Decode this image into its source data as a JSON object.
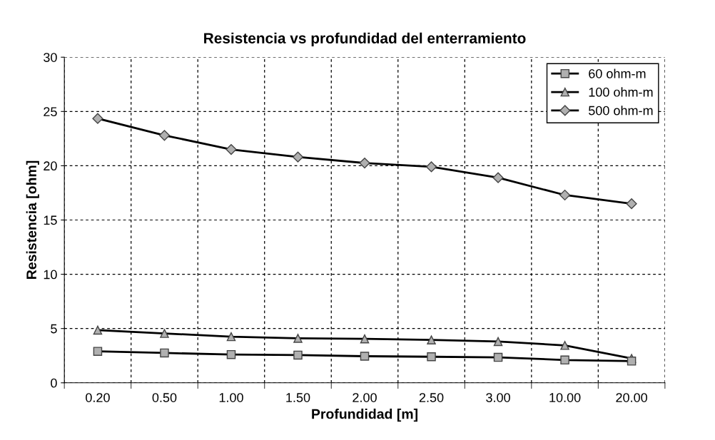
{
  "chart_data": {
    "type": "line",
    "title": "Resistencia vs profundidad del enterramiento",
    "xlabel": "Profundidad [m]",
    "ylabel": "Resistencia [ohm]",
    "categories": [
      "0.20",
      "0.50",
      "1.00",
      "1.50",
      "2.00",
      "2.50",
      "3.00",
      "10.00",
      "20.00"
    ],
    "ylim": [
      0,
      30
    ],
    "yticks": [
      0,
      5,
      10,
      15,
      20,
      25,
      30
    ],
    "grid": true,
    "legend": "top right",
    "line_style": "solid",
    "series": [
      {
        "name": "60 ohm-m",
        "color": "#000000",
        "marker": "square",
        "values": [
          2.9,
          2.75,
          2.6,
          2.55,
          2.45,
          2.4,
          2.35,
          2.1,
          2.0
        ]
      },
      {
        "name": "100 ohm-m",
        "color": "#000000",
        "marker": "triangle",
        "values": [
          4.85,
          4.55,
          4.25,
          4.1,
          4.05,
          3.95,
          3.8,
          3.45,
          2.25
        ]
      },
      {
        "name": "500 ohm-m",
        "color": "#000000",
        "marker": "diamond",
        "values": [
          24.35,
          22.8,
          21.5,
          20.8,
          20.25,
          19.9,
          18.9,
          17.3,
          16.5
        ]
      }
    ]
  }
}
